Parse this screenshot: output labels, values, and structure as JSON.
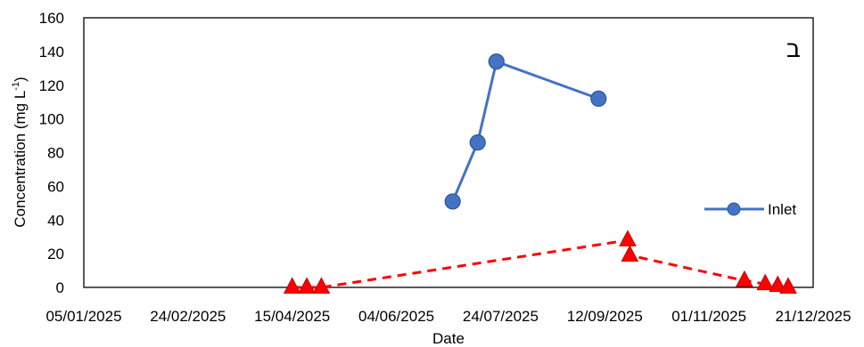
{
  "chart_data": {
    "type": "line",
    "xlabel": "Date",
    "ylabel_main": "Concentration (mg L",
    "ylabel_sup": "-1",
    "ylabel_close": ")",
    "ylim": [
      0,
      160
    ],
    "yticks": [
      0,
      20,
      40,
      60,
      80,
      100,
      120,
      140,
      160
    ],
    "yticks_text": [
      "0",
      "20",
      "40",
      "60",
      "80",
      "100",
      "120",
      "140",
      "160"
    ],
    "xlim": [
      "2025-01-05",
      "2025-12-21"
    ],
    "xticks": [
      "2025-01-05",
      "2025-02-24",
      "2025-04-15",
      "2025-06-04",
      "2025-07-24",
      "2025-09-12",
      "2025-11-01",
      "2025-12-21"
    ],
    "xticks_text": [
      "05/01/2025",
      "24/02/2025",
      "15/04/2025",
      "04/06/2025",
      "24/07/2025",
      "12/09/2025",
      "01/11/2025",
      "21/12/2025"
    ],
    "panel_label": "ב",
    "grid": false,
    "legend_position": "right",
    "series": [
      {
        "name": "Inlet",
        "color": "#4472C4",
        "marker": "circle",
        "line": "solid",
        "x": [
          "2025-07-01",
          "2025-07-13",
          "2025-07-22",
          "2025-09-09"
        ],
        "y": [
          51,
          86,
          134,
          112
        ]
      },
      {
        "color": "#FF0000",
        "marker": "triangle",
        "line": "dashed",
        "x": [
          "2025-04-15",
          "2025-04-22",
          "2025-04-29",
          "2025-09-23",
          "2025-09-24",
          "2025-11-18",
          "2025-11-28",
          "2025-12-04",
          "2025-12-09"
        ],
        "y": [
          0,
          0,
          0,
          28,
          19,
          4,
          2,
          1,
          0
        ]
      }
    ]
  }
}
